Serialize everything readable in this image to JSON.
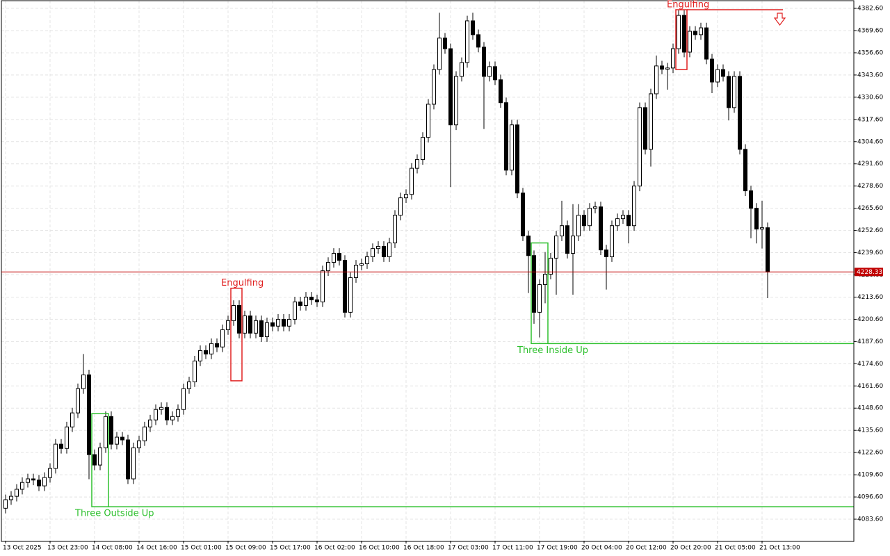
{
  "chart_data": {
    "type": "candlestick",
    "categories": [
      "13 Oct 2025",
      null,
      null,
      null,
      null,
      null,
      null,
      null,
      "13 Oct 23:00",
      null,
      null,
      null,
      null,
      null,
      null,
      null,
      "14 Oct 08:00",
      null,
      null,
      null,
      null,
      null,
      null,
      null,
      "14 Oct 16:00",
      null,
      null,
      null,
      null,
      null,
      null,
      null,
      "15 Oct 01:00",
      null,
      null,
      null,
      null,
      null,
      null,
      null,
      "15 Oct 09:00",
      null,
      null,
      null,
      null,
      null,
      null,
      null,
      "15 Oct 17:00",
      null,
      null,
      null,
      null,
      null,
      null,
      null,
      "16 Oct 02:00",
      null,
      null,
      null,
      null,
      null,
      null,
      null,
      "16 Oct 10:00",
      null,
      null,
      null,
      null,
      null,
      null,
      null,
      "16 Oct 18:00",
      null,
      null,
      null,
      null,
      null,
      null,
      null,
      "17 Oct 03:00",
      null,
      null,
      null,
      null,
      null,
      null,
      null,
      "17 Oct 11:00",
      null,
      null,
      null,
      null,
      null,
      null,
      null,
      "17 Oct 19:00",
      null,
      null,
      null,
      null,
      null,
      null,
      null,
      "20 Oct 04:00",
      null,
      null,
      null,
      null,
      null,
      null,
      null,
      "20 Oct 12:00",
      null,
      null,
      null,
      null,
      null,
      null,
      null,
      "20 Oct 20:00",
      null,
      null,
      null,
      null,
      null,
      null,
      null,
      "21 Oct 05:00",
      null,
      null,
      null,
      null,
      null,
      null,
      null,
      "21 Oct 13:00",
      null
    ],
    "open": [
      4090.0,
      4095.0,
      4097.0,
      4101.1,
      4105.1,
      4107.2,
      4106.5,
      4103.1,
      4108.0,
      4113.3,
      4127.5,
      4125.0,
      4137.6,
      4145.8,
      4160.0,
      4168.1,
      4121.4,
      4115.3,
      4125.4,
      4143.7,
      4127.5,
      4131.6,
      4130.0,
      4107.2,
      4125.4,
      4129.5,
      4137.6,
      4141.7,
      4147.8,
      4149.0,
      4141.7,
      4143.7,
      4147.8,
      4160.0,
      4164.0,
      4176.2,
      4182.3,
      4180.3,
      4186.4,
      4184.4,
      4194.5,
      4199.8,
      4208.7,
      4192.5,
      4202.6,
      4192.5,
      4199.8,
      4190.4,
      4198.6,
      4196.6,
      4200.6,
      4196.6,
      4200.6,
      4210.8,
      4208.7,
      4213.6,
      4212.0,
      4210.8,
      4229.0,
      4233.9,
      4239.2,
      4235.1,
      4204.7,
      4225.0,
      4232.3,
      4233.1,
      4237.2,
      4242.0,
      4243.3,
      4237.2,
      4245.3,
      4261.5,
      4271.7,
      4273.7,
      4289.0,
      4294.1,
      4307.1,
      4326.5,
      4346.8,
      4365.2,
      4359.0,
      4314.4,
      4342.8,
      4350.9,
      4375.3,
      4367.2,
      4359.9,
      4342.8,
      4348.5,
      4340.8,
      4327.4,
      4287.9,
      4314.4,
      4274.5,
      4249.4,
      4237.9,
      4204.7,
      4220.9,
      4227.0,
      4236.4,
      4249.4,
      4255.4,
      4239.2,
      4249.4,
      4261.5,
      4255.4,
      4265.6,
      4266.4,
      4241.2,
      4237.2,
      4255.4,
      4259.5,
      4261.5,
      4255.4,
      4278.6,
      4324.5,
      4300.1,
      4332.6,
      4348.9,
      4347.0,
      4347.7,
      4359.0,
      4378.5,
      4357.0,
      4369.2,
      4367.2,
      4371.2,
      4352.9,
      4339.5,
      4346.8,
      4342.8,
      4324.5,
      4342.8,
      4300.1,
      4275.8,
      4265.6,
      4253.4,
      4254.2
    ],
    "high": [
      4098.0,
      4100.0,
      4104.1,
      4108.1,
      4110.2,
      4110.2,
      4109.5,
      4111.0,
      4116.3,
      4130.5,
      4130.5,
      4140.6,
      4148.8,
      4163.0,
      4180.3,
      4171.1,
      4124.4,
      4128.4,
      4146.7,
      4146.7,
      4134.6,
      4134.6,
      4133.0,
      4128.4,
      4132.5,
      4140.6,
      4144.7,
      4150.8,
      4152.0,
      4152.0,
      4146.7,
      4150.8,
      4163.0,
      4167.0,
      4179.2,
      4185.3,
      4185.3,
      4189.4,
      4189.4,
      4197.5,
      4202.8,
      4211.7,
      4211.7,
      4205.6,
      4205.6,
      4202.8,
      4202.8,
      4201.6,
      4201.6,
      4203.6,
      4203.6,
      4203.6,
      4213.8,
      4213.8,
      4216.6,
      4216.6,
      4215.0,
      4232.0,
      4236.9,
      4242.2,
      4242.2,
      4238.1,
      4228.0,
      4235.3,
      4236.1,
      4240.2,
      4245.0,
      4246.3,
      4246.3,
      4248.3,
      4264.5,
      4274.7,
      4276.7,
      4292.0,
      4297.1,
      4310.1,
      4329.5,
      4349.8,
      4380.0,
      4368.2,
      4362.0,
      4345.8,
      4353.9,
      4378.3,
      4380.0,
      4370.2,
      4362.9,
      4351.5,
      4351.5,
      4343.8,
      4330.4,
      4317.4,
      4317.4,
      4277.5,
      4252.4,
      4240.9,
      4223.9,
      4240.0,
      4239.4,
      4252.4,
      4270.0,
      4258.4,
      4268.0,
      4268.0,
      4264.5,
      4268.6,
      4269.4,
      4269.4,
      4244.2,
      4258.4,
      4262.5,
      4264.5,
      4264.5,
      4281.6,
      4327.5,
      4327.5,
      4335.6,
      4355.0,
      4351.9,
      4350.7,
      4362.0,
      4381.5,
      4381.5,
      4372.2,
      4372.2,
      4374.2,
      4374.2,
      4355.9,
      4349.8,
      4349.8,
      4345.8,
      4345.8,
      4345.8,
      4303.1,
      4278.8,
      4268.6,
      4270.0,
      4257.2
    ],
    "low": [
      4087.0,
      4092.0,
      4094.0,
      4098.1,
      4102.1,
      4103.5,
      4100.1,
      4100.1,
      4105.0,
      4110.3,
      4122.0,
      4122.0,
      4134.6,
      4142.8,
      4157.0,
      4107.0,
      4112.3,
      4112.3,
      4122.4,
      4124.5,
      4124.5,
      4127.0,
      4104.2,
      4104.2,
      4122.4,
      4126.5,
      4134.6,
      4138.7,
      4144.8,
      4138.7,
      4138.7,
      4140.7,
      4144.8,
      4157.0,
      4161.0,
      4173.2,
      4177.3,
      4177.3,
      4181.4,
      4181.4,
      4191.5,
      4196.8,
      4189.5,
      4189.5,
      4189.5,
      4189.5,
      4187.4,
      4187.4,
      4193.6,
      4193.6,
      4193.6,
      4193.6,
      4197.6,
      4205.7,
      4205.7,
      4209.0,
      4207.8,
      4207.8,
      4226.0,
      4230.9,
      4232.1,
      4201.7,
      4201.7,
      4222.0,
      4229.3,
      4230.1,
      4234.2,
      4239.0,
      4234.2,
      4234.2,
      4242.3,
      4258.5,
      4268.7,
      4270.7,
      4286.0,
      4291.1,
      4304.1,
      4323.5,
      4343.8,
      4356.0,
      4278.0,
      4311.4,
      4339.8,
      4347.9,
      4364.2,
      4356.9,
      4312.0,
      4339.8,
      4337.8,
      4324.4,
      4284.9,
      4284.9,
      4271.5,
      4246.4,
      4216.0,
      4198.0,
      4190.0,
      4210.0,
      4224.0,
      4215.0,
      4246.4,
      4236.2,
      4215.0,
      4246.4,
      4252.4,
      4252.4,
      4262.6,
      4238.2,
      4218.0,
      4234.2,
      4252.4,
      4256.5,
      4245.0,
      4252.4,
      4275.6,
      4297.1,
      4290.0,
      4329.6,
      4344.0,
      4335.0,
      4344.7,
      4356.0,
      4354.0,
      4354.0,
      4364.2,
      4364.2,
      4349.9,
      4333.0,
      4336.5,
      4339.8,
      4317.0,
      4321.5,
      4297.1,
      4272.8,
      4248.0,
      4245.0,
      4242.0,
      4213.0
    ],
    "close": [
      4095.0,
      4097.0,
      4101.1,
      4105.1,
      4107.2,
      4106.5,
      4103.1,
      4108.0,
      4113.3,
      4127.5,
      4125.0,
      4137.6,
      4145.8,
      4160.0,
      4168.1,
      4121.4,
      4115.3,
      4125.4,
      4143.7,
      4127.5,
      4131.6,
      4130.0,
      4107.2,
      4125.4,
      4129.5,
      4137.6,
      4141.7,
      4147.8,
      4149.0,
      4141.7,
      4143.7,
      4147.8,
      4160.0,
      4164.0,
      4176.2,
      4182.3,
      4180.3,
      4186.4,
      4184.4,
      4194.5,
      4199.8,
      4208.7,
      4192.5,
      4202.6,
      4192.5,
      4199.8,
      4190.4,
      4198.6,
      4196.6,
      4200.6,
      4196.6,
      4200.6,
      4210.8,
      4208.7,
      4213.6,
      4212.0,
      4210.8,
      4229.0,
      4233.9,
      4239.2,
      4235.1,
      4204.7,
      4225.0,
      4232.3,
      4233.1,
      4237.2,
      4242.0,
      4243.3,
      4237.2,
      4245.3,
      4261.5,
      4271.7,
      4273.7,
      4289.0,
      4294.1,
      4307.1,
      4326.5,
      4346.8,
      4365.2,
      4359.0,
      4314.4,
      4342.8,
      4350.9,
      4375.3,
      4367.2,
      4359.9,
      4342.8,
      4348.5,
      4340.8,
      4327.4,
      4287.9,
      4314.4,
      4274.5,
      4249.4,
      4237.9,
      4204.7,
      4220.9,
      4227.0,
      4236.4,
      4249.4,
      4255.4,
      4239.2,
      4249.4,
      4261.5,
      4255.4,
      4265.6,
      4266.4,
      4241.2,
      4237.2,
      4255.4,
      4259.5,
      4261.5,
      4255.4,
      4278.6,
      4324.5,
      4300.1,
      4332.6,
      4348.9,
      4347.0,
      4347.7,
      4359.0,
      4378.5,
      4357.0,
      4369.2,
      4367.2,
      4371.2,
      4352.9,
      4339.5,
      4346.8,
      4342.8,
      4324.5,
      4342.8,
      4300.1,
      4275.8,
      4265.6,
      4253.4,
      4254.2,
      4228.3
    ],
    "ylim": [
      4071.0,
      4387.5
    ],
    "yticks": [
      {
        "value": 4083.6,
        "label": "4083.60"
      },
      {
        "value": 4096.6,
        "label": "4096.60"
      },
      {
        "value": 4109.6,
        "label": "4109.60"
      },
      {
        "value": 4122.6,
        "label": "4122.60"
      },
      {
        "value": 4135.6,
        "label": "4135.60"
      },
      {
        "value": 4148.6,
        "label": "4148.60"
      },
      {
        "value": 4161.6,
        "label": "4161.60"
      },
      {
        "value": 4174.6,
        "label": "4174.60"
      },
      {
        "value": 4187.6,
        "label": "4187.60"
      },
      {
        "value": 4200.6,
        "label": "4200.60"
      },
      {
        "value": 4213.6,
        "label": "4213.60"
      },
      {
        "value": 4226.6,
        "label": "4226.60"
      },
      {
        "value": 4239.6,
        "label": "4239.60"
      },
      {
        "value": 4252.6,
        "label": "4252.60"
      },
      {
        "value": 4265.6,
        "label": "4265.60"
      },
      {
        "value": 4278.6,
        "label": "4278.60"
      },
      {
        "value": 4291.6,
        "label": "4291.60"
      },
      {
        "value": 4304.6,
        "label": "4304.60"
      },
      {
        "value": 4317.6,
        "label": "4317.60"
      },
      {
        "value": 4330.6,
        "label": "4330.60"
      },
      {
        "value": 4343.6,
        "label": "4343.60"
      },
      {
        "value": 4356.6,
        "label": "4356.60"
      },
      {
        "value": 4369.6,
        "label": "4369.60"
      },
      {
        "value": 4382.6,
        "label": "4382.60"
      }
    ],
    "grid": true,
    "last_price": 4228.33,
    "last_price_color": "#c00000",
    "up_color": "#ffffff",
    "down_color": "#000000",
    "patterns": [
      {
        "label": "Three Outside Up",
        "color": "#2ec02e",
        "high": 4145.4,
        "low": 4090.9,
        "level": 4090.9
      },
      {
        "label": "Engulfing",
        "color": "#e02020",
        "high": 4218.8,
        "low": 4164.6
      },
      {
        "label": "Three Inside Up",
        "color": "#2ec02e",
        "high": 4245.3,
        "low": 4186.4,
        "level": 4186.4
      },
      {
        "label": "Engulfing",
        "color": "#e02020",
        "high": 4381.8,
        "low": 4346.8,
        "level": 4381.8
      }
    ]
  }
}
